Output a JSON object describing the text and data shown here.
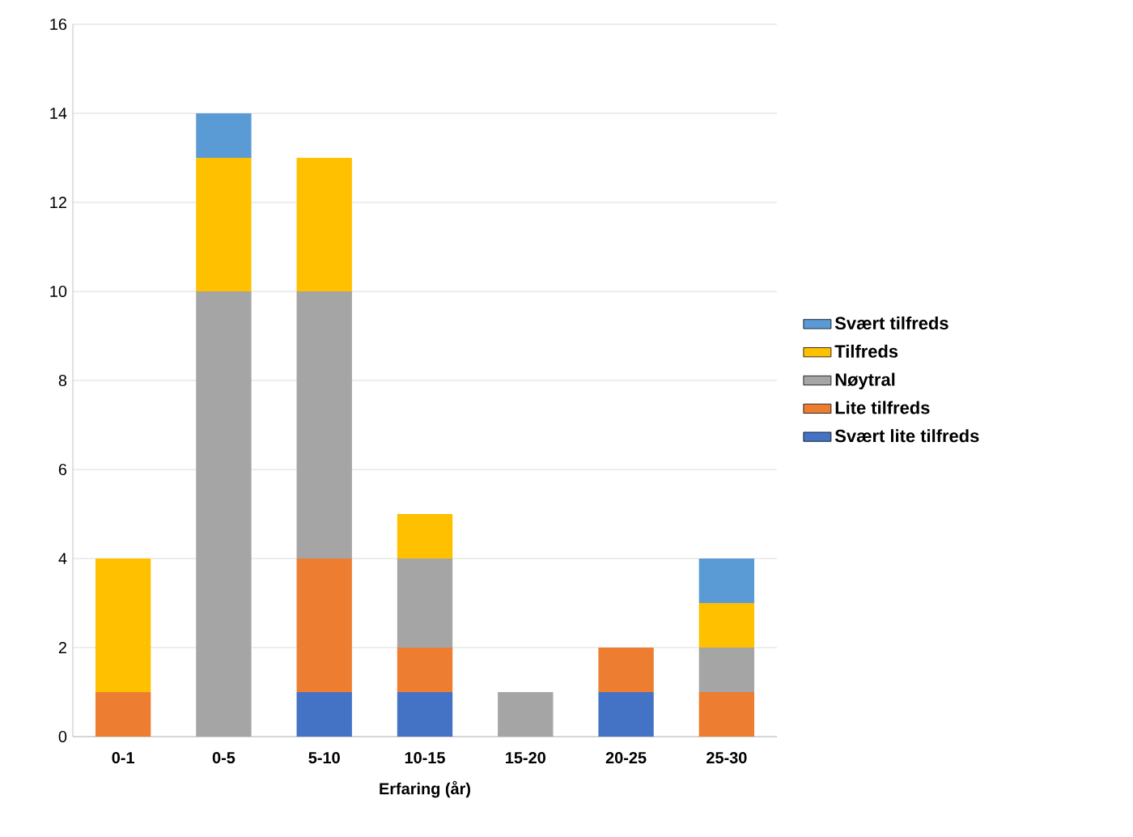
{
  "chart_data": {
    "type": "bar",
    "stacked": true,
    "xlabel": "Erfaring (år)",
    "categories": [
      "0-1",
      "0-5",
      "5-10",
      "10-15",
      "15-20",
      "20-25",
      "25-30"
    ],
    "series": [
      {
        "name": "Svært lite tilfreds",
        "color": "#4472c4",
        "values": [
          0,
          0,
          1,
          1,
          0,
          1,
          0
        ]
      },
      {
        "name": "Lite tilfreds",
        "color": "#ed7d31",
        "values": [
          1,
          0,
          3,
          1,
          0,
          1,
          1
        ]
      },
      {
        "name": "Nøytral",
        "color": "#a5a5a5",
        "values": [
          0,
          10,
          6,
          2,
          1,
          0,
          1
        ]
      },
      {
        "name": "Tilfreds",
        "color": "#ffc000",
        "values": [
          3,
          3,
          3,
          1,
          0,
          0,
          1
        ]
      },
      {
        "name": "Svært tilfreds",
        "color": "#5b9bd5",
        "values": [
          0,
          1,
          0,
          0,
          0,
          0,
          1
        ]
      }
    ],
    "ylim": [
      0,
      16
    ],
    "yticks": [
      0,
      2,
      4,
      6,
      8,
      10,
      12,
      14,
      16
    ],
    "grid": "y",
    "legend": "right"
  }
}
